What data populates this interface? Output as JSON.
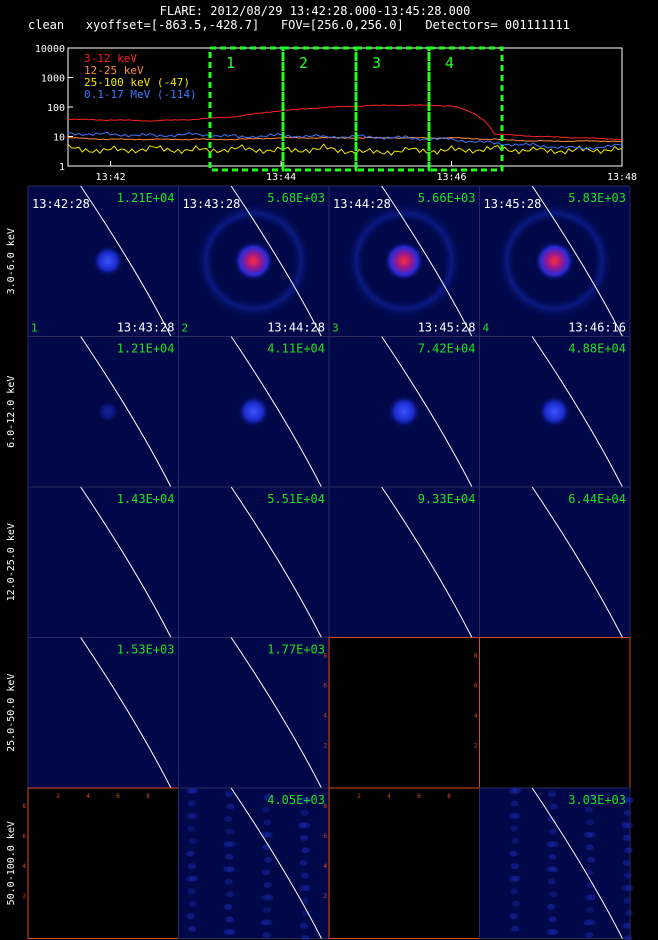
{
  "header": {
    "title": "FLARE: 2012/08/29 13:42:28.000-13:45:28.000",
    "mode": "clean",
    "xyoffset": "xyoffset=[-863.5,-428.7]",
    "fov": "FOV=[256.0,256.0]",
    "detectors": "Detectors= 001111111"
  },
  "lightcurve": {
    "y_ticks": [
      "10000",
      "1000",
      "100",
      "10",
      "1"
    ],
    "x_ticks": [
      "13:42",
      "13:44",
      "13:46",
      "13:48"
    ],
    "legend": [
      {
        "label": "3-12 keV",
        "color": "#ff2020"
      },
      {
        "label": "12-25 keV",
        "color": "#ff8a3c"
      },
      {
        "label": "25-100 keV (-47)",
        "color": "#f2e600"
      },
      {
        "label": "0.1-17 MeV (-114)",
        "color": "#3c78ff"
      }
    ],
    "boxes": [
      "1",
      "2",
      "3",
      "4"
    ],
    "box_color": "#20ff20"
  },
  "chart_data": {
    "type": "line",
    "x": [
      "13:41:30",
      "13:42:00",
      "13:42:30",
      "13:43:00",
      "13:43:30",
      "13:44:00",
      "13:44:30",
      "13:45:00",
      "13:45:30",
      "13:46:00",
      "13:46:30",
      "13:47:00",
      "13:47:30",
      "13:48:00"
    ],
    "series": [
      {
        "name": "3-12 keV",
        "values": [
          38,
          36,
          34,
          38,
          48,
          75,
          95,
          110,
          115,
          110,
          12,
          10,
          9,
          8
        ]
      },
      {
        "name": "12-25 keV",
        "values": [
          9,
          8,
          8,
          8,
          8,
          9,
          9,
          9,
          9,
          9,
          8,
          7,
          7,
          7
        ]
      },
      {
        "name": "25-100 keV (-47)",
        "values": [
          4,
          3.5,
          4,
          3.5,
          4,
          3.5,
          4,
          3,
          3.5,
          3.5,
          4,
          3.5,
          3.5,
          4
        ]
      },
      {
        "name": "0.1-17 MeV (-114)",
        "values": [
          13,
          12,
          11,
          12,
          10,
          11,
          10,
          10,
          9,
          8,
          6,
          5,
          4,
          5
        ]
      }
    ],
    "yscale": "log",
    "ylim": [
      1,
      10000
    ]
  },
  "grid": {
    "row_labels": [
      "3.0-6.0 keV",
      "6.0-12.0 keV",
      "12.0-25.0 keV",
      "25.0-50.0 keV",
      "50.0-100.0 keV"
    ],
    "panels": [
      [
        {
          "peak": "1.21E+04",
          "start": "13:42:28",
          "end": "13:43:28",
          "num": "1",
          "blob": 0.55
        },
        {
          "peak": "5.68E+03",
          "start": "13:43:28",
          "end": "13:44:28",
          "num": "2",
          "blob": 1.0,
          "ring": true
        },
        {
          "peak": "5.66E+03",
          "start": "13:44:28",
          "end": "13:45:28",
          "num": "3",
          "blob": 1.0,
          "ring": true
        },
        {
          "peak": "5.83E+03",
          "start": "13:45:28",
          "end": "13:46:16",
          "num": "4",
          "blob": 1.0,
          "ring": true
        }
      ],
      [
        {
          "peak": "1.21E+04",
          "blob": 0.05
        },
        {
          "peak": "4.11E+04",
          "blob": 0.6
        },
        {
          "peak": "7.42E+04",
          "blob": 0.65
        },
        {
          "peak": "4.88E+04",
          "blob": 0.6
        }
      ],
      [
        {
          "peak": "1.43E+04"
        },
        {
          "peak": "5.51E+04"
        },
        {
          "peak": "9.33E+04"
        },
        {
          "peak": "6.44E+04"
        }
      ],
      [
        {
          "peak": "1.53E+03"
        },
        {
          "peak": "1.77E+03"
        },
        {
          "empty": true
        },
        {
          "empty": true
        }
      ],
      [
        {
          "empty": true
        },
        {
          "peak": "4.05E+03",
          "noise": true
        },
        {
          "empty": true
        },
        {
          "peak": "3.03E+03",
          "noise": true
        }
      ]
    ],
    "empty_ticks_y": [
      "8",
      "6",
      "4",
      "2"
    ],
    "empty_ticks_x": [
      "2",
      "4",
      "6",
      "8"
    ]
  }
}
